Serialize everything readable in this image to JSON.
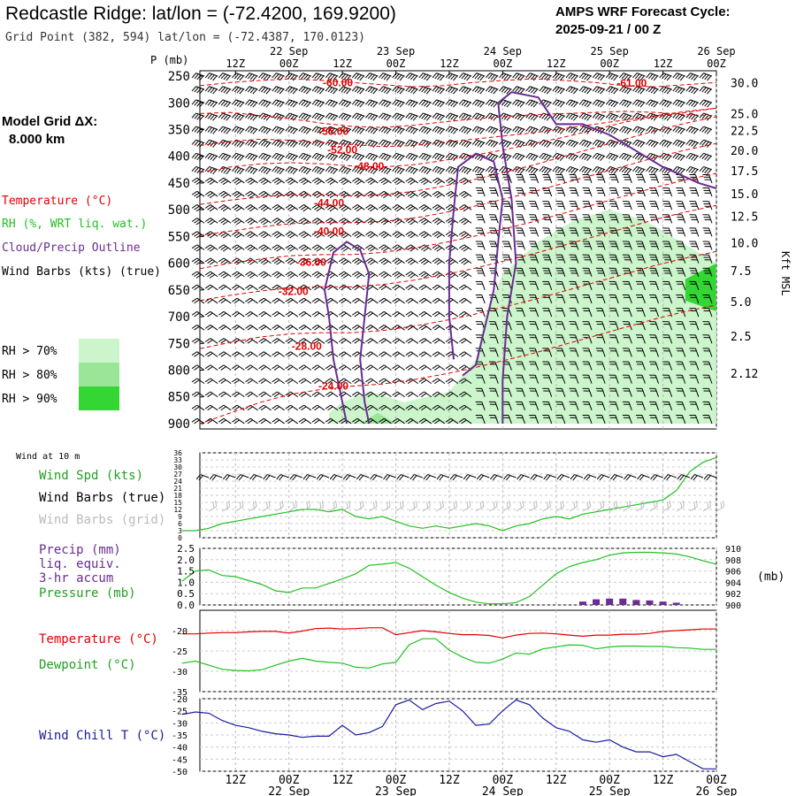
{
  "header": {
    "title": "Redcastle Ridge:  lat/lon = (-72.4200, 169.9200)",
    "subtitle": "Grid Point (382, 594) lat/lon = (-72.4387, 170.0123)",
    "cycle_label": "AMPS WRF Forecast Cycle:",
    "cycle_value": "2025-09-21 / 00  Z",
    "model_grid_label": "Model Grid ΔX:",
    "model_grid_value": "8.000 km"
  },
  "colors": {
    "temperature": "#e00000",
    "rh": "#22c022",
    "cloud": "#6a2c91",
    "wind_chill": "#1a1aa0",
    "rh70": "#ccf5cc",
    "rh80": "#99e699",
    "rh90": "#33d633"
  },
  "time_axis": {
    "hour_labels": [
      "12Z",
      "00Z",
      "12Z",
      "00Z",
      "12Z",
      "00Z",
      "12Z",
      "00Z",
      "12Z",
      "00Z"
    ],
    "date_labels": [
      "22 Sep",
      "23 Sep",
      "24 Sep",
      "25 Sep",
      "26 Sep"
    ],
    "start_hour": 0,
    "end_hour": 120
  },
  "chart_data": [
    {
      "type": "contour",
      "panel": "cross-section",
      "ylabel": "P (mb)",
      "pressure_levels": [
        250,
        300,
        350,
        400,
        450,
        500,
        550,
        600,
        650,
        700,
        750,
        800,
        850,
        900
      ],
      "height_ticks_kft": [
        "30.0",
        "25.0",
        "22.5",
        "20.0",
        "17.5",
        "15.0",
        "12.5",
        "10.0",
        "7.5",
        "5.0",
        "2.5",
        "2.12"
      ],
      "height_axis_label": "Kft MSL",
      "legend": [
        "Temperature (°C)",
        "RH (%, WRT liq. wat.)",
        "Cloud/Precip Outline",
        "Wind Barbs (kts) (true)"
      ],
      "rh_legend": [
        "RH > 70%",
        "RH > 80%",
        "RH > 90%"
      ],
      "temperature_contours": [
        {
          "label": "-60.00",
          "pressure": [
            268,
            262,
            258,
            255,
            258,
            262,
            266,
            270,
            268,
            262,
            258,
            255,
            258,
            262,
            268,
            270,
            266,
            262
          ],
          "label_hour": 35,
          "label_p": 262
        },
        {
          "label": "-56.00",
          "pressure": [
            320,
            318,
            324,
            330,
            338,
            344,
            346,
            342,
            336,
            330,
            326,
            322,
            320,
            318,
            316,
            318,
            322,
            324
          ],
          "label_hour": 34,
          "label_p": 353
        },
        {
          "label": "-52.00",
          "pressure": [
            380,
            372,
            368,
            370,
            374,
            378,
            382,
            380,
            374,
            368,
            362,
            356,
            348,
            340,
            332,
            324,
            316,
            310
          ],
          "label_hour": 36,
          "label_p": 388
        },
        {
          "label": "-48.00",
          "pressure": [
            430,
            420,
            414,
            412,
            414,
            418,
            420,
            416,
            408,
            398,
            388,
            376,
            364,
            350,
            336,
            326,
            318,
            310
          ],
          "label_hour": 42,
          "label_p": 419
        },
        {
          "label": "-44.00",
          "pressure": [
            490,
            482,
            476,
            472,
            472,
            474,
            472,
            466,
            456,
            444,
            430,
            416,
            400,
            384,
            368,
            352,
            338,
            326
          ],
          "label_hour": 33,
          "label_p": 487
        },
        {
          "label": "-40.00",
          "pressure": [
            548,
            540,
            532,
            526,
            524,
            524,
            522,
            516,
            506,
            494,
            480,
            466,
            450,
            434,
            418,
            402,
            388,
            376
          ],
          "label_hour": 33,
          "label_p": 540
        },
        {
          "label": "-36.00",
          "pressure": [
            610,
            600,
            592,
            586,
            584,
            584,
            580,
            572,
            562,
            550,
            536,
            522,
            506,
            490,
            474,
            458,
            444,
            432
          ],
          "label_hour": 29,
          "label_p": 598
        },
        {
          "label": "-32.00",
          "pressure": [
            670,
            660,
            652,
            646,
            644,
            644,
            640,
            632,
            622,
            610,
            596,
            582,
            566,
            550,
            534,
            518,
            504,
            492
          ],
          "label_hour": 25,
          "label_p": 653
        },
        {
          "label": "-28.00",
          "pressure": [
            760,
            748,
            738,
            732,
            730,
            730,
            726,
            718,
            708,
            696,
            682,
            668,
            652,
            636,
            620,
            604,
            590,
            578
          ],
          "label_hour": 28,
          "label_p": 755
        },
        {
          "label": "-24.00",
          "pressure": [
            900,
            880,
            860,
            845,
            836,
            830,
            826,
            818,
            808,
            796,
            782,
            768,
            752,
            736,
            720,
            704,
            690,
            678
          ],
          "label_hour": 34,
          "label_p": 830
        }
      ],
      "temp_right_label": "-61.00",
      "rh_regions": [
        {
          "level": "70",
          "hours": [
            [
              33,
              880
            ],
            [
              36,
              860
            ],
            [
              42,
              840
            ],
            [
              50,
              860
            ],
            [
              60,
              840
            ],
            [
              66,
              780
            ],
            [
              68,
              700
            ],
            [
              72,
              620
            ],
            [
              80,
              560
            ],
            [
              88,
              520
            ],
            [
              96,
              500
            ],
            [
              104,
              520
            ],
            [
              112,
              560
            ],
            [
              120,
              600
            ],
            [
              120,
              900
            ],
            [
              33,
              900
            ]
          ]
        },
        {
          "level": "80",
          "hours": [
            [
              40,
              900
            ],
            [
              44,
              880
            ],
            [
              48,
              900
            ]
          ]
        },
        {
          "level": "90",
          "hours": [
            [
              113,
              630
            ],
            [
              120,
              600
            ],
            [
              120,
              690
            ],
            [
              113,
              670
            ]
          ]
        }
      ],
      "cloud_outlines": [
        {
          "points": [
            [
              37,
              900
            ],
            [
              36,
              860
            ],
            [
              34,
              780
            ],
            [
              33,
              700
            ],
            [
              32,
              650
            ],
            [
              34,
              580
            ],
            [
              37,
              560
            ],
            [
              40,
              575
            ],
            [
              42,
              620
            ],
            [
              41,
              700
            ],
            [
              40,
              780
            ],
            [
              41,
              860
            ],
            [
              42,
              900
            ]
          ]
        },
        {
          "points": [
            [
              61,
              780
            ],
            [
              60,
              700
            ],
            [
              60,
              600
            ],
            [
              61,
              500
            ],
            [
              62,
              420
            ],
            [
              66,
              395
            ],
            [
              70,
              410
            ],
            [
              72,
              480
            ],
            [
              71,
              560
            ],
            [
              70,
              650
            ],
            [
              68,
              720
            ],
            [
              66,
              790
            ],
            [
              63,
              810
            ]
          ]
        },
        {
          "points": [
            [
              72,
              900
            ],
            [
              72,
              820
            ],
            [
              73,
              700
            ],
            [
              75,
              600
            ],
            [
              74,
              480
            ],
            [
              72,
              380
            ],
            [
              71,
              300
            ],
            [
              74,
              280
            ],
            [
              80,
              290
            ],
            [
              84,
              340
            ],
            [
              90,
              340
            ],
            [
              96,
              360
            ],
            [
              102,
              390
            ],
            [
              108,
              420
            ],
            [
              116,
              450
            ],
            [
              120,
              460
            ]
          ]
        }
      ]
    },
    {
      "type": "line",
      "panel": "wind",
      "title": "Wind at 10 m",
      "legend": [
        "Wind Spd (kts)",
        "Wind Barbs (true)",
        "Wind Barbs (grid)"
      ],
      "y_ticks": [
        36,
        33,
        30,
        27,
        24,
        21,
        18,
        15,
        12,
        9,
        6,
        3,
        0
      ],
      "ylim": [
        0,
        36
      ],
      "x_hours": [
        0,
        3,
        6,
        9,
        12,
        15,
        18,
        21,
        24,
        27,
        30,
        33,
        36,
        39,
        42,
        45,
        48,
        51,
        54,
        57,
        60,
        63,
        66,
        69,
        72,
        75,
        78,
        81,
        84,
        87,
        90,
        93,
        96,
        99,
        102,
        105,
        108,
        111,
        114,
        117,
        120
      ],
      "wind_speed": [
        3,
        3,
        4,
        6,
        7,
        8,
        9,
        10,
        11,
        12,
        12,
        11,
        12,
        9,
        8,
        9,
        7,
        5,
        4,
        5,
        4,
        5,
        6,
        5,
        3,
        5,
        6,
        8,
        9,
        8,
        10,
        11,
        12,
        13,
        14,
        15,
        16,
        20,
        28,
        32,
        34
      ]
    },
    {
      "type": "line",
      "panel": "precip-pressure",
      "legend": [
        "Precip (mm)",
        "liq. equiv.",
        "3-hr accum",
        "Pressure (mb)"
      ],
      "y_ticks_left": [
        "2.5",
        "2.0",
        "1.5",
        "1.0",
        "0.5",
        "0.0"
      ],
      "y_ticks_right": [
        "910",
        "908",
        "906",
        "904",
        "902",
        "900"
      ],
      "right_unit": "(mb)",
      "precip_ylim": [
        0,
        2.5
      ],
      "pressure_ylim": [
        900,
        910
      ],
      "x_hours": [
        0,
        3,
        6,
        9,
        12,
        15,
        18,
        21,
        24,
        27,
        30,
        33,
        36,
        39,
        42,
        45,
        48,
        51,
        54,
        57,
        60,
        63,
        66,
        69,
        72,
        75,
        78,
        81,
        84,
        87,
        90,
        93,
        96,
        99,
        102,
        105,
        108,
        111,
        114,
        117,
        120
      ],
      "pressure": [
        904.2,
        906.0,
        906.2,
        905.2,
        905.0,
        904.3,
        903.6,
        902.5,
        902.2,
        903.0,
        903.0,
        903.8,
        904.6,
        905.5,
        907.0,
        907.2,
        907.5,
        906.5,
        905.0,
        903.5,
        902.2,
        901.2,
        900.5,
        900.2,
        900.2,
        900.4,
        901.5,
        903.5,
        905.5,
        906.8,
        907.5,
        908.0,
        908.8,
        909.2,
        909.3,
        909.3,
        909.2,
        909.0,
        908.5,
        907.8,
        907.2
      ],
      "precip_3hr": [
        0,
        0,
        0,
        0,
        0,
        0,
        0,
        0,
        0,
        0,
        0,
        0,
        0,
        0,
        0,
        0,
        0,
        0.02,
        0.02,
        0,
        0,
        0,
        0,
        0,
        0,
        0,
        0,
        0,
        0,
        0,
        0.15,
        0.25,
        0.28,
        0.28,
        0.22,
        0.2,
        0.15,
        0.1,
        0.0,
        0,
        0
      ]
    },
    {
      "type": "line",
      "panel": "temp-dewpoint",
      "legend": [
        "Temperature (°C)",
        "Dewpoint (°C)"
      ],
      "y_ticks": [
        "-20",
        "-25",
        "-30",
        "-35"
      ],
      "ylim": [
        -35,
        -15
      ],
      "x_hours": [
        0,
        3,
        6,
        9,
        12,
        15,
        18,
        21,
        24,
        27,
        30,
        33,
        36,
        39,
        42,
        45,
        48,
        51,
        54,
        57,
        60,
        63,
        66,
        69,
        72,
        75,
        78,
        81,
        84,
        87,
        90,
        93,
        96,
        99,
        102,
        105,
        108,
        111,
        114,
        117,
        120
      ],
      "temperature": [
        -20.8,
        -20.8,
        -20.6,
        -20.5,
        -20.5,
        -20.3,
        -20.2,
        -20.2,
        -20.6,
        -20.1,
        -19.5,
        -19.4,
        -19.6,
        -19.5,
        -19.3,
        -19.3,
        -21.0,
        -20.5,
        -20.0,
        -20.3,
        -20.7,
        -21.0,
        -21.0,
        -21.2,
        -21.8,
        -21.1,
        -20.7,
        -20.6,
        -20.8,
        -21.1,
        -21.4,
        -21.1,
        -21.1,
        -20.9,
        -20.9,
        -20.7,
        -20.2,
        -20.0,
        -19.8,
        -19.6,
        -19.6
      ],
      "dewpoint": [
        -28.0,
        -27.5,
        -28.5,
        -29.5,
        -29.8,
        -29.9,
        -29.6,
        -28.5,
        -27.5,
        -26.8,
        -27.5,
        -27.8,
        -28.0,
        -29.0,
        -29.2,
        -28.2,
        -27.8,
        -23.5,
        -22.0,
        -22.0,
        -24.8,
        -26.5,
        -27.8,
        -28.0,
        -27.0,
        -25.5,
        -25.8,
        -24.5,
        -24.0,
        -23.5,
        -23.6,
        -24.5,
        -24.0,
        -23.8,
        -23.8,
        -23.9,
        -23.9,
        -24.2,
        -24.3,
        -24.6,
        -24.6
      ]
    },
    {
      "type": "line",
      "panel": "wind-chill",
      "legend": [
        "Wind Chill T (°C)"
      ],
      "y_ticks": [
        "-20",
        "-25",
        "-30",
        "-35",
        "-40",
        "-45",
        "-50"
      ],
      "ylim": [
        -50,
        -20
      ],
      "x_hours": [
        0,
        3,
        6,
        9,
        12,
        15,
        18,
        21,
        24,
        27,
        30,
        33,
        36,
        39,
        42,
        45,
        48,
        51,
        54,
        57,
        60,
        63,
        66,
        69,
        72,
        75,
        78,
        81,
        84,
        87,
        90,
        93,
        96,
        99,
        102,
        105,
        108,
        111,
        114,
        117,
        120
      ],
      "wind_chill": [
        -26.5,
        -25.5,
        -26,
        -29,
        -31,
        -32,
        -33.5,
        -34.5,
        -35,
        -36,
        -35.5,
        -35.5,
        -31,
        -35,
        -34,
        -31.5,
        -22.5,
        -20.5,
        -24.5,
        -22,
        -21,
        -25,
        -31,
        -30.5,
        -25,
        -20.5,
        -22.5,
        -28,
        -32,
        -33.5,
        -37,
        -38,
        -37,
        -40,
        -42,
        -42,
        -44,
        -43,
        -46,
        -49,
        -49
      ]
    }
  ]
}
